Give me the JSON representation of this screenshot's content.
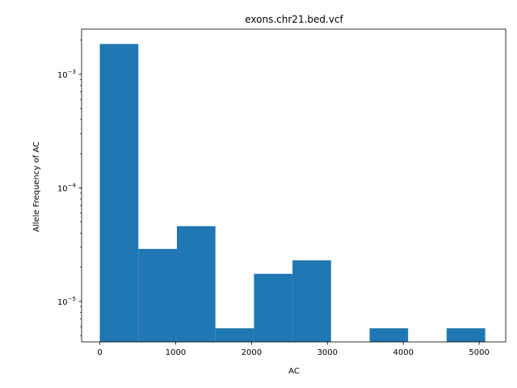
{
  "chart_data": {
    "type": "bar",
    "title": "exons.chr21.bed.vcf",
    "xlabel": "AC",
    "ylabel": "Allele Frequency of AC",
    "yscale": "log",
    "grid": false,
    "bar_color": "#1f77b4",
    "xlim": [
      -240,
      5350
    ],
    "ylim": [
      4.4e-06,
      0.0025
    ],
    "x_ticks": [
      {
        "value": 0,
        "label": "0"
      },
      {
        "value": 1000,
        "label": "1000"
      },
      {
        "value": 2000,
        "label": "2000"
      },
      {
        "value": 3000,
        "label": "3000"
      },
      {
        "value": 4000,
        "label": "4000"
      },
      {
        "value": 5000,
        "label": "5000"
      }
    ],
    "y_major_ticks": [
      {
        "value": 1e-05,
        "base": "10",
        "exp": "−5"
      },
      {
        "value": 0.0001,
        "base": "10",
        "exp": "−4"
      },
      {
        "value": 0.001,
        "base": "10",
        "exp": "−3"
      }
    ],
    "bins": [
      {
        "x0": 0,
        "x1": 508,
        "value": 0.00185
      },
      {
        "x0": 508,
        "x1": 1016,
        "value": 2.9e-05
      },
      {
        "x0": 1016,
        "x1": 1524,
        "value": 4.6e-05
      },
      {
        "x0": 1524,
        "x1": 2032,
        "value": 5.8e-06
      },
      {
        "x0": 2032,
        "x1": 2540,
        "value": 1.75e-05
      },
      {
        "x0": 2540,
        "x1": 3048,
        "value": 2.3e-05
      },
      {
        "x0": 3556,
        "x1": 4064,
        "value": 5.8e-06
      },
      {
        "x0": 4572,
        "x1": 5080,
        "value": 5.8e-06
      }
    ]
  }
}
